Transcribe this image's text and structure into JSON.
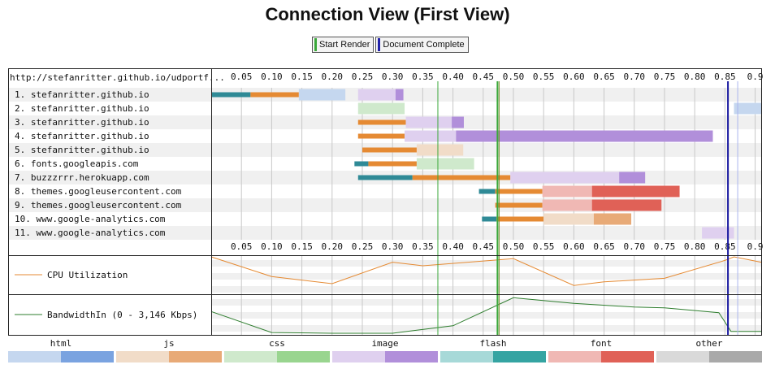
{
  "page": {
    "title": "Connection View (First View)"
  },
  "key": [
    {
      "label": "Start Render",
      "color": "#3aa83a"
    },
    {
      "label": "Document Complete",
      "color": "#2222aa"
    }
  ],
  "chart_data": {
    "type": "waterfall",
    "url_header": "http://stefanritter.github.io/udportf...",
    "x_range": [
      0,
      0.91
    ],
    "ticks": [
      "0.05",
      "0.10",
      "0.15",
      "0.20",
      "0.25",
      "0.30",
      "0.35",
      "0.40",
      "0.45",
      "0.50",
      "0.55",
      "0.60",
      "0.65",
      "0.70",
      "0.75",
      "0.80",
      "0.85",
      "0.9"
    ],
    "tick_values": [
      0.05,
      0.1,
      0.15,
      0.2,
      0.25,
      0.3,
      0.35,
      0.4,
      0.45,
      0.5,
      0.55,
      0.6,
      0.65,
      0.7,
      0.75,
      0.8,
      0.85,
      0.9
    ],
    "start_render": 0.375,
    "document_complete": 0.475,
    "load_event": 0.855,
    "rows": [
      {
        "label": "1. stefanritter.github.io",
        "segments": [
          {
            "start": 0.0,
            "end": 0.065,
            "type": "ssl"
          },
          {
            "start": 0.065,
            "end": 0.145,
            "type": "dns"
          },
          {
            "start": 0.145,
            "end": 0.222,
            "type": "html-light"
          },
          {
            "start": 0.243,
            "end": 0.305,
            "type": "image-light"
          },
          {
            "start": 0.305,
            "end": 0.318,
            "type": "image"
          }
        ]
      },
      {
        "label": "2. stefanritter.github.io",
        "segments": [
          {
            "start": 0.243,
            "end": 0.32,
            "type": "css-light"
          },
          {
            "start": 0.865,
            "end": 0.91,
            "type": "html-light"
          }
        ]
      },
      {
        "label": "3. stefanritter.github.io",
        "segments": [
          {
            "start": 0.243,
            "end": 0.322,
            "type": "dns"
          },
          {
            "start": 0.322,
            "end": 0.398,
            "type": "image-light"
          },
          {
            "start": 0.398,
            "end": 0.418,
            "type": "image"
          }
        ]
      },
      {
        "label": "4. stefanritter.github.io",
        "segments": [
          {
            "start": 0.243,
            "end": 0.32,
            "type": "dns"
          },
          {
            "start": 0.32,
            "end": 0.405,
            "type": "image-light"
          },
          {
            "start": 0.405,
            "end": 0.83,
            "type": "image"
          }
        ]
      },
      {
        "label": "5. stefanritter.github.io",
        "segments": [
          {
            "start": 0.25,
            "end": 0.34,
            "type": "dns"
          },
          {
            "start": 0.34,
            "end": 0.417,
            "type": "js-light"
          }
        ]
      },
      {
        "label": "6. fonts.googleapis.com",
        "segments": [
          {
            "start": 0.237,
            "end": 0.26,
            "type": "ssl"
          },
          {
            "start": 0.26,
            "end": 0.34,
            "type": "dns"
          },
          {
            "start": 0.34,
            "end": 0.435,
            "type": "css-light"
          }
        ]
      },
      {
        "label": "7. buzzzrrr.herokuapp.com",
        "segments": [
          {
            "start": 0.243,
            "end": 0.333,
            "type": "ssl"
          },
          {
            "start": 0.333,
            "end": 0.495,
            "type": "dns"
          },
          {
            "start": 0.495,
            "end": 0.675,
            "type": "image-light"
          },
          {
            "start": 0.675,
            "end": 0.718,
            "type": "image"
          }
        ]
      },
      {
        "label": "8. themes.googleusercontent.com",
        "segments": [
          {
            "start": 0.443,
            "end": 0.47,
            "type": "ssl"
          },
          {
            "start": 0.47,
            "end": 0.548,
            "type": "dns"
          },
          {
            "start": 0.548,
            "end": 0.63,
            "type": "font-light"
          },
          {
            "start": 0.63,
            "end": 0.775,
            "type": "font"
          }
        ]
      },
      {
        "label": "9. themes.googleusercontent.com",
        "segments": [
          {
            "start": 0.47,
            "end": 0.548,
            "type": "dns"
          },
          {
            "start": 0.548,
            "end": 0.63,
            "type": "font-light"
          },
          {
            "start": 0.63,
            "end": 0.745,
            "type": "font"
          }
        ]
      },
      {
        "label": "10. www.google-analytics.com",
        "segments": [
          {
            "start": 0.448,
            "end": 0.472,
            "type": "ssl"
          },
          {
            "start": 0.472,
            "end": 0.55,
            "type": "dns"
          },
          {
            "start": 0.55,
            "end": 0.633,
            "type": "js-light"
          },
          {
            "start": 0.633,
            "end": 0.695,
            "type": "js"
          }
        ]
      },
      {
        "label": "11. www.google-analytics.com",
        "segments": [
          {
            "start": 0.812,
            "end": 0.865,
            "type": "image-light"
          }
        ]
      }
    ],
    "cpu": {
      "label": "CPU Utilization",
      "points": [
        [
          0,
          100
        ],
        [
          0.1,
          45
        ],
        [
          0.2,
          25
        ],
        [
          0.3,
          85
        ],
        [
          0.35,
          75
        ],
        [
          0.5,
          95
        ],
        [
          0.6,
          20
        ],
        [
          0.65,
          30
        ],
        [
          0.75,
          40
        ],
        [
          0.85,
          90
        ],
        [
          0.865,
          100
        ],
        [
          0.91,
          85
        ]
      ]
    },
    "bandwidth": {
      "label": "BandwidthIn (0 - 3,146 Kbps)",
      "points": [
        [
          0,
          58
        ],
        [
          0.1,
          2
        ],
        [
          0.2,
          0
        ],
        [
          0.3,
          0
        ],
        [
          0.4,
          20
        ],
        [
          0.5,
          95
        ],
        [
          0.6,
          80
        ],
        [
          0.7,
          70
        ],
        [
          0.75,
          68
        ],
        [
          0.84,
          55
        ],
        [
          0.86,
          5
        ],
        [
          0.91,
          5
        ]
      ]
    },
    "legend": [
      {
        "label": "html",
        "light": "#c5d7ef",
        "dark": "#7aa3e0"
      },
      {
        "label": "js",
        "light": "#f1dcc8",
        "dark": "#e8aa77"
      },
      {
        "label": "css",
        "light": "#cfe9cc",
        "dark": "#99d58f"
      },
      {
        "label": "image",
        "light": "#dfd0ef",
        "dark": "#b18fda"
      },
      {
        "label": "flash",
        "light": "#a7d9d8",
        "dark": "#35a4a2"
      },
      {
        "label": "font",
        "light": "#f0b8b4",
        "dark": "#e06157"
      },
      {
        "label": "other",
        "light": "#d9d9d9",
        "dark": "#a9a9a9"
      }
    ]
  }
}
